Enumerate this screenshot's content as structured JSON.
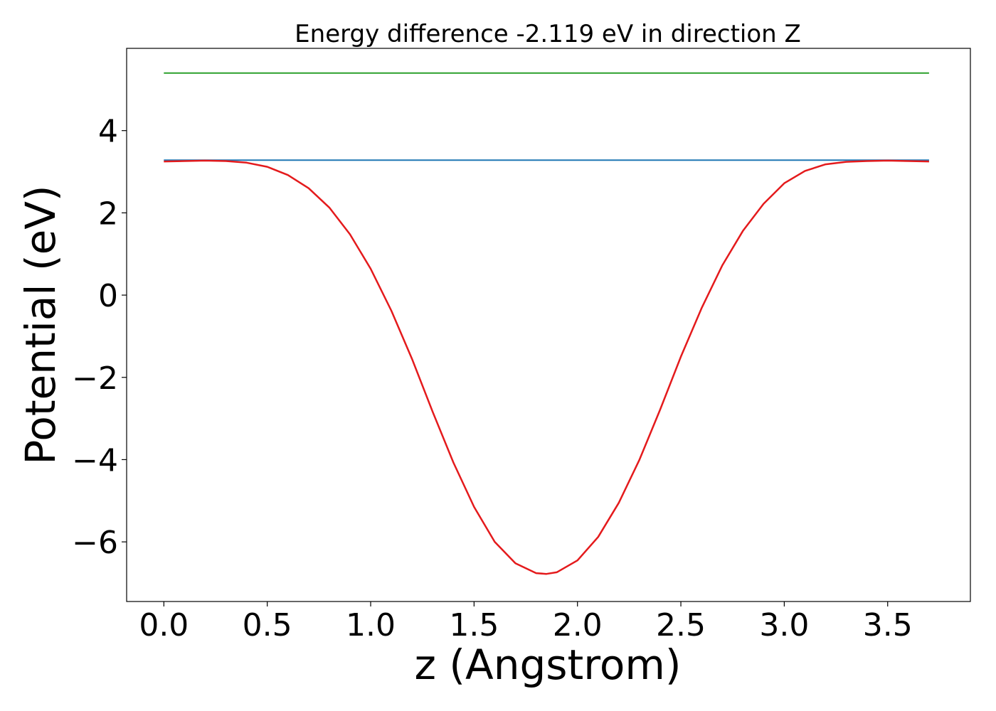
{
  "chart_data": {
    "type": "line",
    "title": "Energy difference -2.119 eV in direction Z",
    "xlabel": "z (Angstrom)",
    "ylabel": "Potential (eV)",
    "xlim": [
      -0.18,
      3.9
    ],
    "ylim": [
      -7.45,
      6.0
    ],
    "xticks": [
      "0.0",
      "0.5",
      "1.0",
      "1.5",
      "2.0",
      "2.5",
      "3.0",
      "3.5"
    ],
    "xtick_values": [
      0,
      0.5,
      1.0,
      1.5,
      2.0,
      2.5,
      3.0,
      3.5
    ],
    "yticks": [
      "−6",
      "−4",
      "−2",
      "0",
      "2",
      "4"
    ],
    "ytick_values": [
      -6,
      -4,
      -2,
      0,
      2,
      4
    ],
    "grid": false,
    "series": [
      {
        "color": "#2ca02c",
        "x": [
          0.0,
          3.7
        ],
        "y": [
          5.4,
          5.4
        ]
      },
      {
        "color": "#1f77b4",
        "x": [
          0.0,
          3.7
        ],
        "y": [
          3.28,
          3.28
        ]
      },
      {
        "color": "#e41a1c",
        "x": [
          0.0,
          0.1,
          0.2,
          0.3,
          0.4,
          0.5,
          0.6,
          0.7,
          0.8,
          0.9,
          1.0,
          1.1,
          1.2,
          1.3,
          1.4,
          1.5,
          1.6,
          1.7,
          1.8,
          1.85,
          1.9,
          2.0,
          2.1,
          2.2,
          2.3,
          2.4,
          2.5,
          2.6,
          2.7,
          2.8,
          2.9,
          3.0,
          3.1,
          3.2,
          3.3,
          3.4,
          3.5,
          3.6,
          3.7
        ],
        "y": [
          3.25,
          3.26,
          3.27,
          3.26,
          3.22,
          3.12,
          2.92,
          2.6,
          2.13,
          1.48,
          0.64,
          -0.38,
          -1.55,
          -2.84,
          -4.07,
          -5.15,
          -6.0,
          -6.52,
          -6.76,
          -6.78,
          -6.74,
          -6.45,
          -5.88,
          -5.05,
          -4.0,
          -2.78,
          -1.5,
          -0.32,
          0.72,
          1.56,
          2.22,
          2.72,
          3.02,
          3.18,
          3.24,
          3.26,
          3.27,
          3.26,
          3.25
        ]
      }
    ]
  }
}
